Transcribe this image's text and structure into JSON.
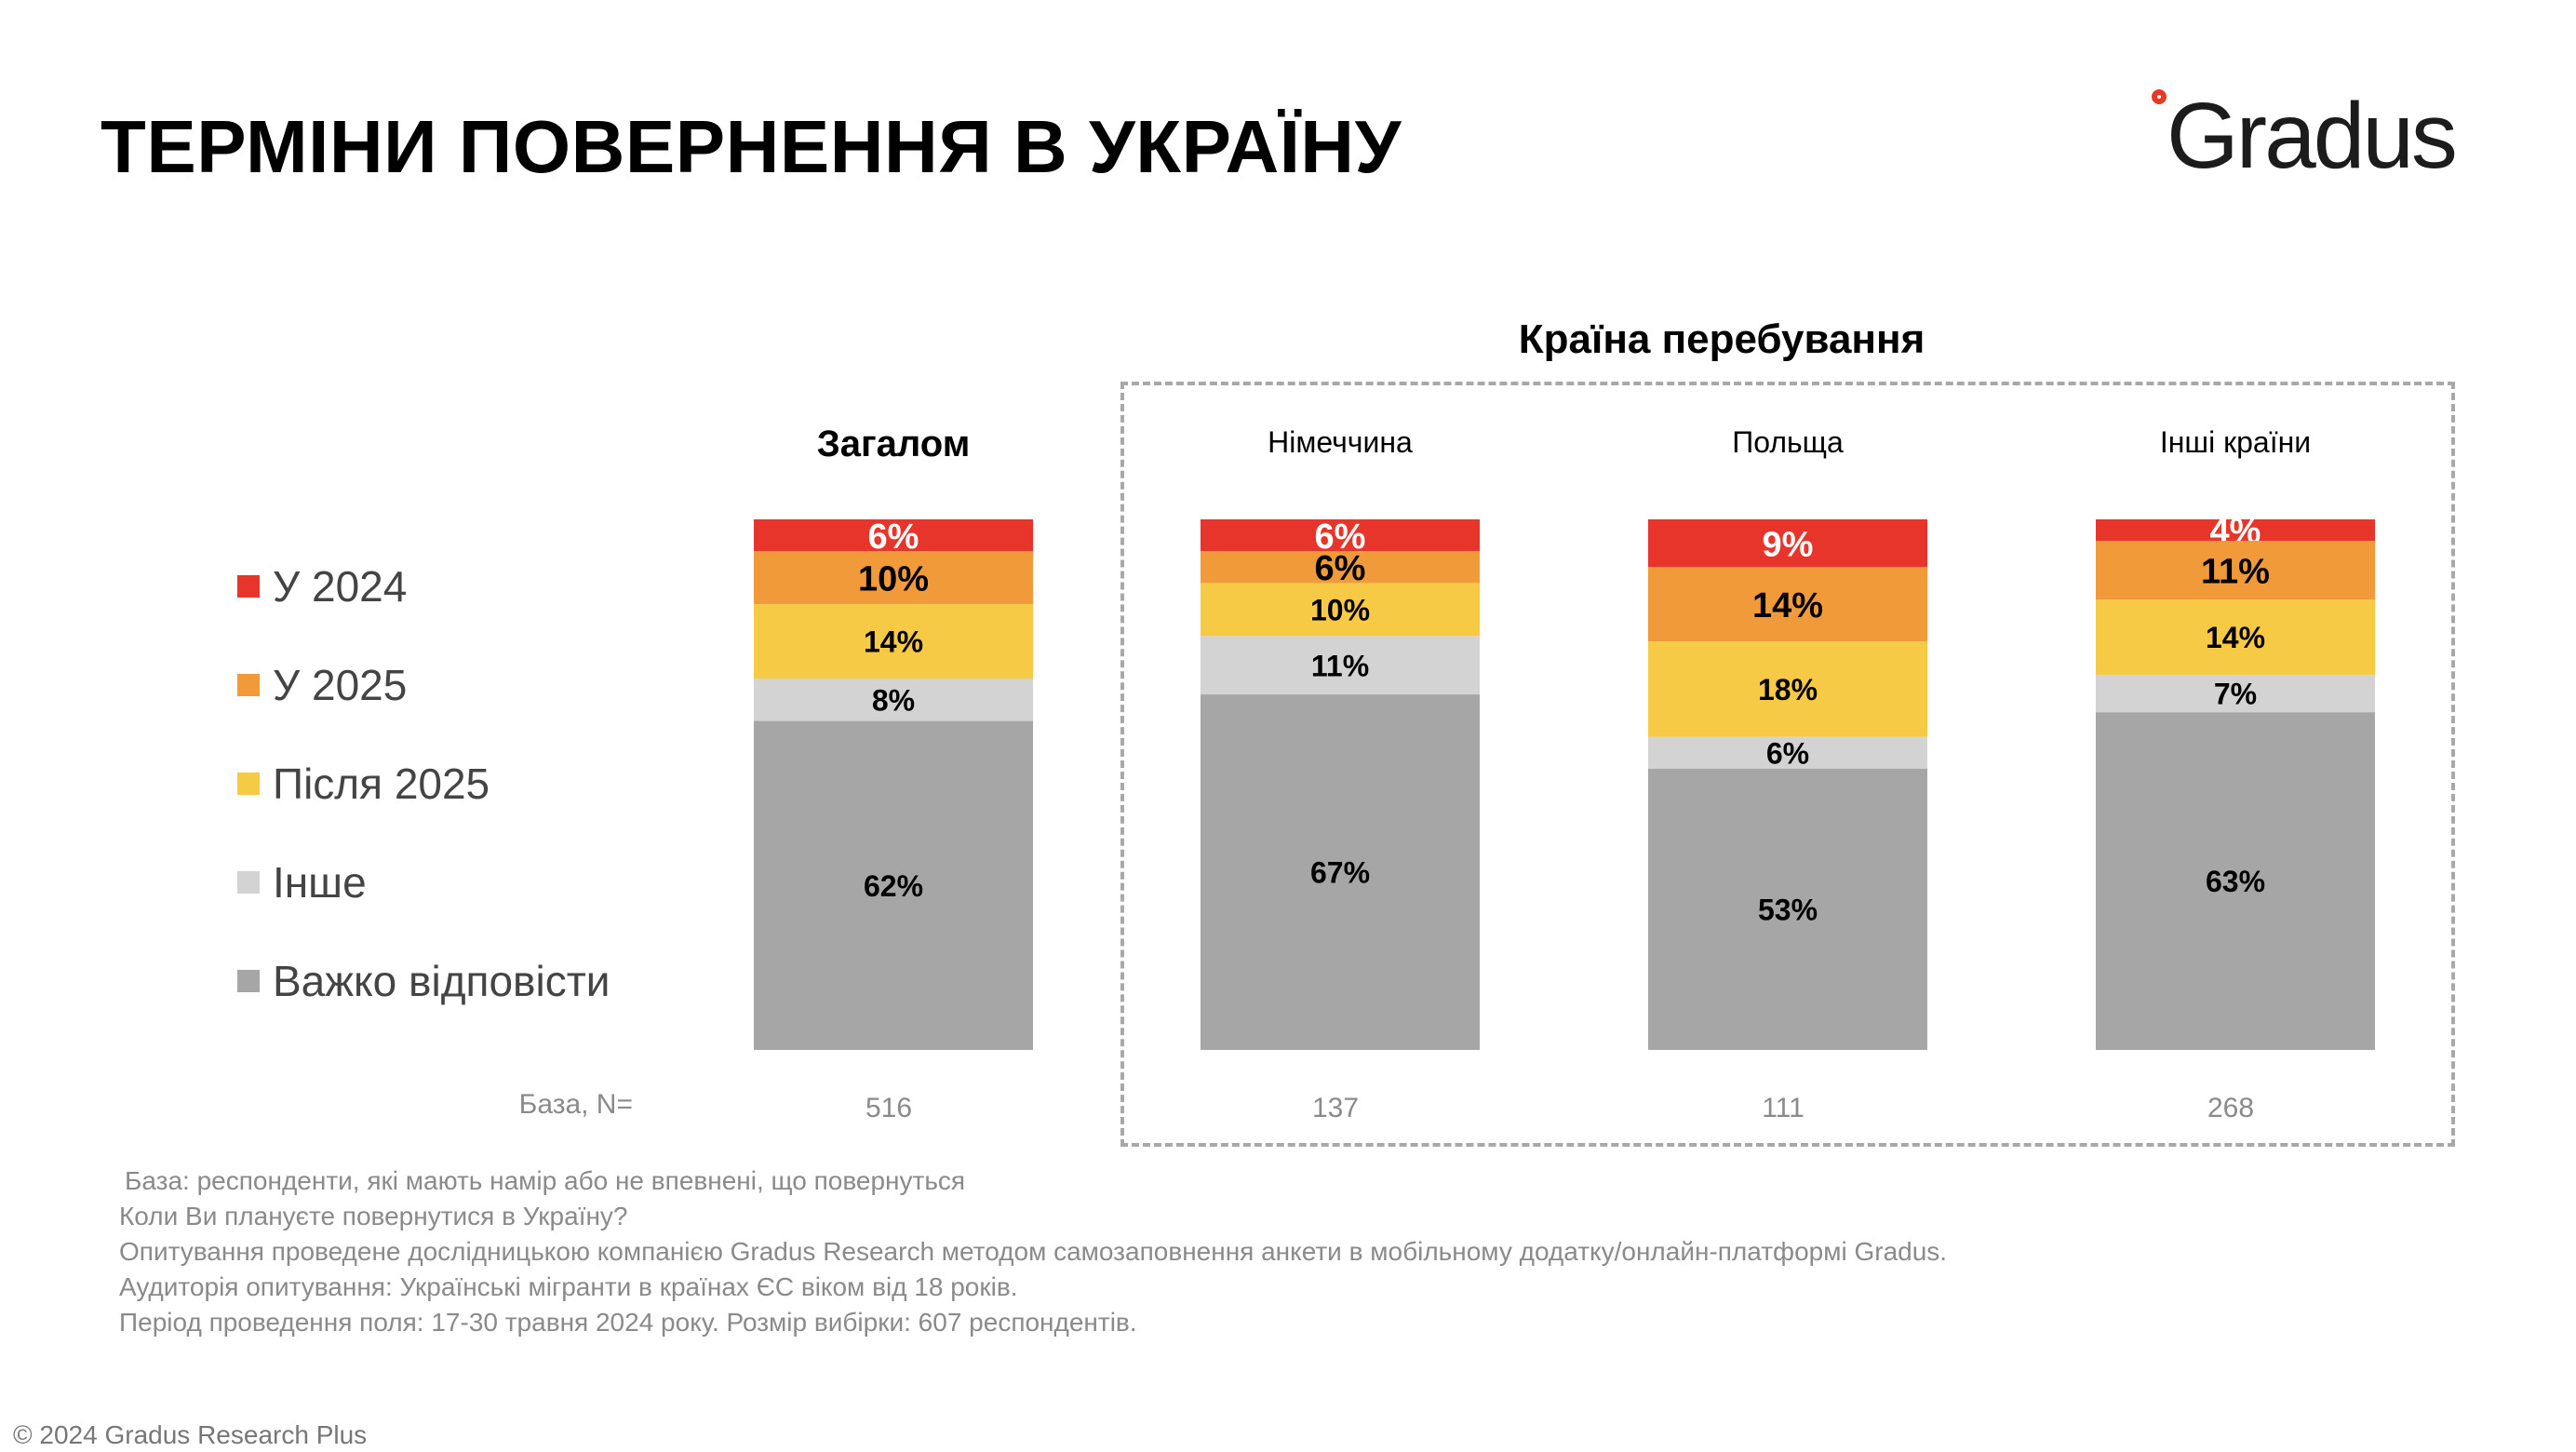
{
  "page": {
    "title": "ТЕРМІНИ ПОВЕРНЕННЯ В УКРАЇНУ",
    "logo_text": "Gradus",
    "group_title": "Країна перебування",
    "base_label": "База, N=",
    "notes": [
      "База: респонденти, які мають намір або не впевнені, що повернуться",
      "Коли Ви плануєте повернутися в Україну?",
      "Опитування проведене дослідницькою компанією Gradus Research методом самозаповнення анкети в мобільному додатку/онлайн-платформі Gradus.",
      "Аудиторія опитування: Українські мігранти в країнах ЄС віком від 18 років.",
      "Період проведення поля: 17-30 травня 2024 року. Розмір вибірки: 607 респондентів."
    ],
    "copyright": "© 2024 Gradus Research Plus",
    "colors": {
      "brand_red": "#e53a25"
    }
  },
  "chart_data": {
    "type": "bar",
    "stacked": true,
    "percent": true,
    "categories": [
      "Загалом",
      "Німеччина",
      "Польща",
      "Інші країни"
    ],
    "base_n": [
      "516",
      "137",
      "111",
      "268"
    ],
    "series": [
      {
        "name": "У 2024",
        "color": "#e8352b",
        "values": [
          6,
          6,
          9,
          4
        ]
      },
      {
        "name": "У 2025",
        "color": "#f09a3a",
        "values": [
          10,
          6,
          14,
          11
        ]
      },
      {
        "name": "Після 2025",
        "color": "#f7ca45",
        "values": [
          14,
          10,
          18,
          14
        ]
      },
      {
        "name": "Інше",
        "color": "#d3d3d3",
        "values": [
          8,
          11,
          6,
          7
        ]
      },
      {
        "name": "Важко відповісти",
        "color": "#a6a6a6",
        "values": [
          62,
          67,
          53,
          63
        ]
      }
    ],
    "legend_position": "left",
    "grid": false
  }
}
